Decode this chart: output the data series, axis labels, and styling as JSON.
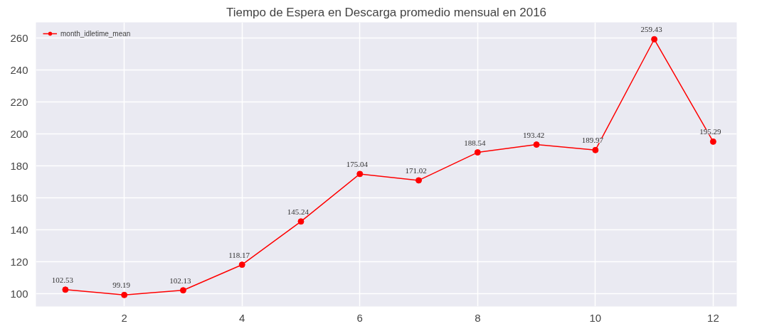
{
  "chart_data": {
    "type": "line",
    "title": "Tiempo de Espera en Descarga promedio mensual en 2016",
    "x": [
      1,
      2,
      3,
      4,
      5,
      6,
      7,
      8,
      9,
      10,
      11,
      12
    ],
    "series": [
      {
        "name": "month_idletime_mean",
        "color": "#ff0000",
        "values": [
          102.53,
          99.19,
          102.13,
          118.17,
          145.24,
          175.04,
          171.02,
          188.54,
          193.42,
          189.97,
          259.43,
          195.29
        ]
      }
    ],
    "xlim": [
      0.5,
      12.4
    ],
    "ylim": [
      92,
      270
    ],
    "xticks": [
      2,
      4,
      6,
      8,
      10,
      12
    ],
    "yticks": [
      100,
      120,
      140,
      160,
      180,
      200,
      220,
      240,
      260
    ],
    "grid": true,
    "legend": "top left",
    "marker": "circle",
    "line_style": "solid",
    "data_labels": true
  }
}
